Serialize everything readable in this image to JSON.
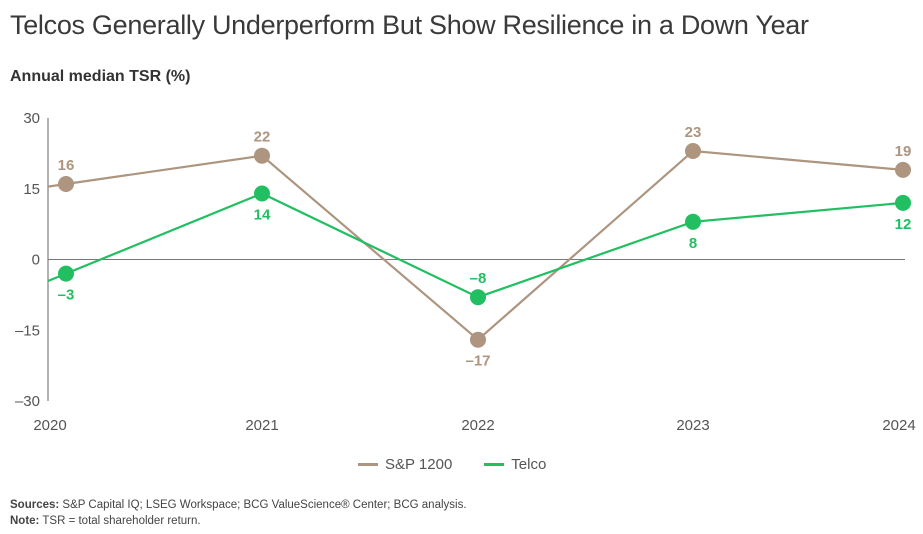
{
  "title": "Telcos Generally Underperform But Show Resilience in a Down Year",
  "subtitle": "Annual median TSR (%)",
  "footer": {
    "sources_label": "Sources:",
    "sources_text": " S&P Capital IQ; LSEG Workspace; BCG ValueScience® Center; BCG analysis.",
    "note_label": "Note:",
    "note_text": " TSR = total shareholder return."
  },
  "chart_data": {
    "type": "line",
    "title": "Telcos Generally Underperform But Show Resilience in a Down Year",
    "ylabel": "Annual median TSR (%)",
    "xlabel": "",
    "x": [
      "2020",
      "2021",
      "2022",
      "2023",
      "2024"
    ],
    "ylim": [
      -30,
      30
    ],
    "yticks": [
      30,
      15,
      0,
      -15,
      -30
    ],
    "ytick_labels": [
      "30",
      "15",
      "0",
      "–15",
      "–30"
    ],
    "grid": false,
    "zero_line": true,
    "legend_position": "bottom-center",
    "series": [
      {
        "name": "S&P 1200",
        "color": "#AD9580",
        "values": [
          16,
          22,
          -17,
          23,
          19
        ],
        "labels": [
          "16",
          "22",
          "–17",
          "23",
          "19"
        ],
        "label_positions": [
          "above",
          "above",
          "below",
          "above",
          "above"
        ]
      },
      {
        "name": "Telco",
        "color": "#21BF61",
        "values": [
          -3,
          14,
          -8,
          8,
          12
        ],
        "labels": [
          "–3",
          "14",
          "–8",
          "8",
          "12"
        ],
        "label_positions": [
          "below",
          "below",
          "above",
          "below",
          "below"
        ]
      }
    ]
  }
}
